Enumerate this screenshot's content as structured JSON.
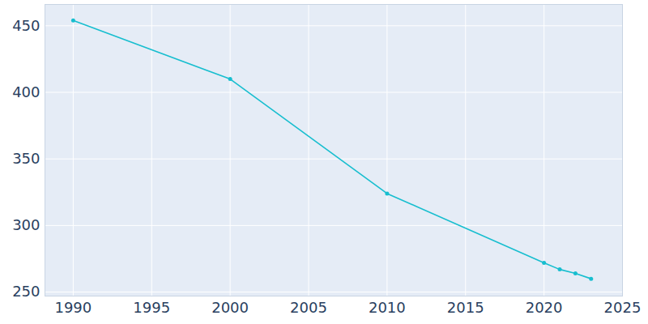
{
  "chart_data": {
    "type": "line",
    "x": [
      1990,
      2000,
      2010,
      2020,
      2021,
      2022,
      2023
    ],
    "values": [
      454,
      410,
      324,
      272,
      267,
      264,
      260
    ],
    "color": "#17becf",
    "marker": "circle",
    "xlim": [
      1988.2,
      2025
    ],
    "ylim": [
      247,
      466
    ],
    "xticks": [
      1990,
      1995,
      2000,
      2005,
      2010,
      2015,
      2020,
      2025
    ],
    "yticks": [
      250,
      300,
      350,
      400,
      450
    ],
    "grid": true
  }
}
